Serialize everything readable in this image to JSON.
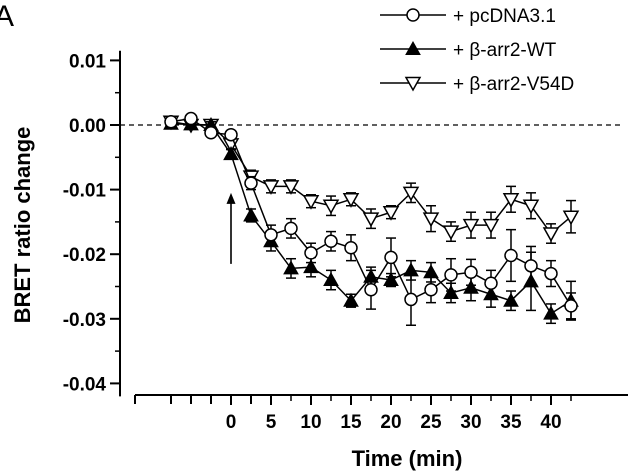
{
  "panel_label": "A",
  "chart_data": {
    "type": "line",
    "xlabel": "Time (min)",
    "ylabel": "BRET ratio change",
    "xlim": [
      -10,
      42
    ],
    "ylim": [
      -0.042,
      0.012
    ],
    "x_ticks": [
      0,
      5,
      10,
      15,
      20,
      25,
      30,
      35,
      40
    ],
    "x_tick_labels": [
      "0",
      "5",
      "10",
      "15",
      "20",
      "25",
      "30",
      "35",
      "40"
    ],
    "y_ticks": [
      0.01,
      0.0,
      -0.01,
      -0.02,
      -0.03,
      -0.04
    ],
    "y_tick_labels": [
      "0.01",
      "0.00",
      "-0.01",
      "-0.02",
      "-0.03",
      "-0.04"
    ],
    "x_minor_ticks": [
      -7.5,
      -5,
      -2.5,
      2.5
    ],
    "reference_line_y": 0,
    "arrow_x": 0,
    "arrow_y_from": -0.0215,
    "arrow_y_to": -0.0105,
    "legend_position": "top-right",
    "series": [
      {
        "name": "+ pcDNA3.1",
        "marker": "circle-open",
        "x": [
          -7.5,
          -5,
          -2.5,
          0,
          2.5,
          5,
          7.5,
          10,
          12.5,
          15,
          17.5,
          20,
          22.5,
          25,
          27.5,
          30,
          32.5,
          35,
          37.5,
          40,
          42.5
        ],
        "y": [
          0.0005,
          0.001,
          -0.0012,
          -0.0015,
          -0.009,
          -0.017,
          -0.016,
          -0.0198,
          -0.018,
          -0.019,
          -0.0255,
          -0.0205,
          -0.027,
          -0.0255,
          -0.0232,
          -0.0228,
          -0.0245,
          -0.0202,
          -0.0218,
          -0.023,
          -0.028
        ],
        "err": [
          0.0005,
          0.0005,
          0.0005,
          0.0005,
          0.001,
          0.0015,
          0.0015,
          0.0015,
          0.0015,
          0.002,
          0.003,
          0.003,
          0.004,
          0.002,
          0.0025,
          0.002,
          0.002,
          0.004,
          0.003,
          0.002,
          0.002
        ]
      },
      {
        "name": "+ β-arr2-WT",
        "marker": "triangle-up-filled",
        "x": [
          -7.5,
          -5,
          -2.5,
          0,
          2.5,
          5,
          7.5,
          10,
          12.5,
          15,
          17.5,
          20,
          22.5,
          25,
          27.5,
          30,
          32.5,
          35,
          37.5,
          40,
          42.5
        ],
        "y": [
          0.0002,
          0.0001,
          0.0,
          -0.0045,
          -0.014,
          -0.018,
          -0.0222,
          -0.022,
          -0.024,
          -0.0272,
          -0.0235,
          -0.024,
          -0.0225,
          -0.0228,
          -0.026,
          -0.0252,
          -0.0262,
          -0.0272,
          -0.0242,
          -0.0292,
          -0.0272
        ],
        "err": [
          0.0005,
          0.0005,
          0.0005,
          0.0008,
          0.001,
          0.0015,
          0.0015,
          0.0015,
          0.0015,
          0.001,
          0.0015,
          0.001,
          0.0015,
          0.0015,
          0.0015,
          0.002,
          0.002,
          0.0015,
          0.0045,
          0.0015,
          0.003
        ]
      },
      {
        "name": "+ β-arr2-V54D",
        "marker": "triangle-down-open",
        "x": [
          -7.5,
          -5,
          -2.5,
          0,
          2.5,
          5,
          7.5,
          10,
          12.5,
          15,
          17.5,
          20,
          22.5,
          25,
          27.5,
          30,
          32.5,
          35,
          37.5,
          40,
          42.5
        ],
        "y": [
          0.0005,
          0.0,
          0.0,
          -0.003,
          -0.008,
          -0.0095,
          -0.0095,
          -0.0118,
          -0.0125,
          -0.0115,
          -0.0145,
          -0.0135,
          -0.0105,
          -0.0145,
          -0.0165,
          -0.0155,
          -0.0155,
          -0.0115,
          -0.0125,
          -0.0168,
          -0.0142
        ],
        "err": [
          0.0005,
          0.0005,
          0.0005,
          0.0008,
          0.001,
          0.001,
          0.001,
          0.001,
          0.0015,
          0.001,
          0.0015,
          0.001,
          0.0015,
          0.002,
          0.0015,
          0.002,
          0.002,
          0.002,
          0.002,
          0.0015,
          0.0025
        ]
      }
    ]
  }
}
